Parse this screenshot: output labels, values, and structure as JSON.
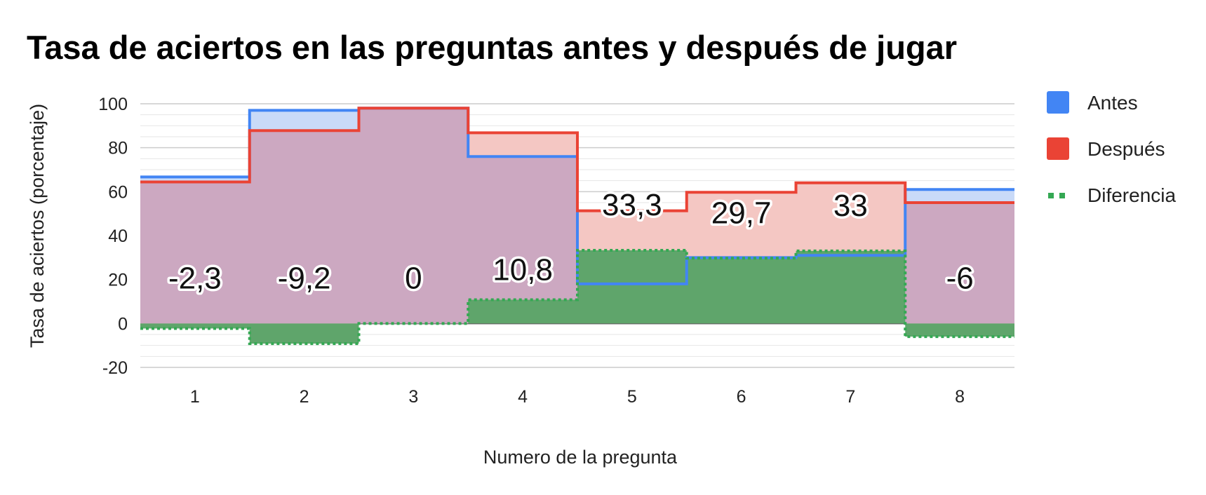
{
  "chart_data": {
    "type": "area",
    "step": true,
    "title": "Tasa de aciertos en las preguntas antes y después de jugar",
    "xlabel": "Numero de la pregunta",
    "ylabel": "Tasa de aciertos (porcentaje)",
    "categories": [
      "1",
      "2",
      "3",
      "4",
      "5",
      "6",
      "7",
      "8"
    ],
    "ylim": [
      -20,
      100
    ],
    "yticks": [
      "100",
      "80",
      "60",
      "40",
      "20",
      "0",
      "-20"
    ],
    "ytick_values": [
      100,
      80,
      60,
      40,
      20,
      0,
      -20
    ],
    "grid": true,
    "legend_position": "right",
    "series": [
      {
        "name": "Antes",
        "color": "#4285f4",
        "fill": "#c9daf8",
        "style": "solid",
        "values": [
          66.7,
          97,
          98,
          76,
          18,
          30,
          31,
          61
        ]
      },
      {
        "name": "Después",
        "color": "#ea4335",
        "fill": "#f4c7c3",
        "style": "solid",
        "values": [
          64.4,
          87.8,
          98,
          86.8,
          51.3,
          59.7,
          64,
          55
        ]
      },
      {
        "name": "Diferencia",
        "color": "#34a853",
        "fill": "#5fa56b",
        "style": "dotted",
        "values": [
          -2.3,
          -9.2,
          0,
          10.8,
          33.3,
          29.7,
          33,
          -6
        ],
        "data_labels": [
          "-2,3",
          "-9,2",
          "0",
          "10,8",
          "33,3",
          "29,7",
          "33",
          "-6"
        ]
      }
    ],
    "overlap_fill": "#cca8c1"
  }
}
